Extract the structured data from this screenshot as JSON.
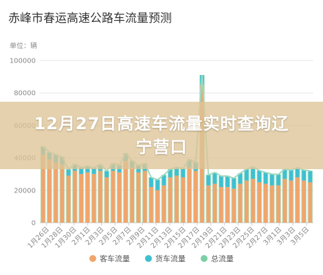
{
  "title": "赤峰市春运高速公路车流量预测",
  "unit": "单位：辆",
  "overlay_text": "12月27日高速车流量实时查询辽宁营口",
  "colors": {
    "passenger": "#f0a56c",
    "freight": "#3ec0d0",
    "total": "#7ccfa4",
    "total_line": "#9fd9bf",
    "grid": "#e6e6e6",
    "axis_text": "#888888"
  },
  "chart_data": {
    "type": "bar",
    "title": "赤峰市春运高速公路车流量预测",
    "ylabel": "单位：辆",
    "ylim": [
      0,
      100000
    ],
    "yticks": [
      0,
      20000,
      40000,
      60000,
      80000,
      100000
    ],
    "tick_labels": [
      "1月26日",
      "1月28日",
      "1月30日",
      "2月1日",
      "2月3日",
      "2月5日",
      "2月7日",
      "2月9日",
      "2月11日",
      "2月13日",
      "2月15日",
      "2月17日",
      "2月19日",
      "2月21日",
      "2月23日",
      "2月25日",
      "2月27日",
      "3月1日",
      "3月3日",
      "3月5日"
    ],
    "legend_position": "bottom",
    "grid": true,
    "series": [
      {
        "name": "客车流量",
        "values": [
          42000,
          39000,
          37000,
          36000,
          29000,
          32000,
          30000,
          31000,
          30000,
          32000,
          28000,
          32000,
          31000,
          38000,
          34000,
          31000,
          32000,
          22000,
          20000,
          23000,
          28000,
          29000,
          28000,
          34000,
          32000,
          85000,
          23000,
          24000,
          22000,
          22000,
          21000,
          24000,
          26000,
          27000,
          25000,
          24000,
          23000,
          23000,
          27000,
          26000,
          28000,
          26000,
          25000
        ]
      },
      {
        "name": "货车流量",
        "values": [
          5000,
          4500,
          5000,
          4500,
          4000,
          4200,
          4000,
          4000,
          3800,
          4000,
          4000,
          4500,
          4500,
          4800,
          4200,
          4300,
          4500,
          6000,
          6500,
          6500,
          5000,
          5200,
          5500,
          5000,
          5200,
          6000,
          6500,
          7000,
          6800,
          6800,
          6500,
          6500,
          7000,
          7500,
          7200,
          7000,
          7000,
          6800,
          6000,
          6500,
          6000,
          6500,
          7000
        ]
      },
      {
        "name": "总流量",
        "values": [
          47000,
          43500,
          42000,
          40500,
          33000,
          36200,
          34000,
          35000,
          33800,
          36000,
          32000,
          36500,
          35500,
          42800,
          38200,
          35300,
          36500,
          28000,
          26500,
          29500,
          33000,
          34200,
          33500,
          39000,
          37200,
          91000,
          29500,
          31000,
          28800,
          28800,
          27500,
          30500,
          33000,
          34500,
          32200,
          31000,
          30000,
          29800,
          33000,
          32500,
          34000,
          32500,
          32000
        ]
      }
    ]
  },
  "legend": [
    {
      "name": "客车流量",
      "key": "passenger"
    },
    {
      "name": "货车流量",
      "key": "freight"
    },
    {
      "name": "总流量",
      "key": "total"
    }
  ]
}
